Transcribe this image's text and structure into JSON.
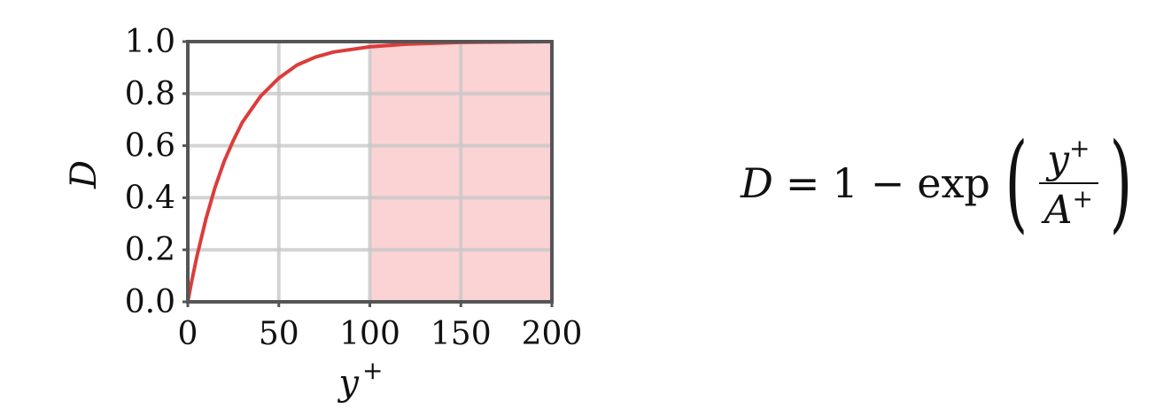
{
  "chart_data": {
    "type": "line",
    "xlabel": "y",
    "xlabel_sup": "+",
    "ylabel": "D",
    "xlim": [
      0,
      200
    ],
    "ylim": [
      0,
      1
    ],
    "x_ticks": [
      "0",
      "50",
      "100",
      "150",
      "200"
    ],
    "y_ticks": [
      "0.0",
      "0.2",
      "0.4",
      "0.6",
      "0.8",
      "1.0"
    ],
    "grid": true,
    "shaded_region": {
      "x_from": 100,
      "x_to": 200,
      "color": "#fbd3d4"
    },
    "series": [
      {
        "color": "#dc3c3c",
        "x": [
          0,
          2,
          5,
          10,
          15,
          20,
          25,
          30,
          40,
          50,
          60,
          70,
          80,
          100,
          120,
          150,
          200
        ],
        "y": [
          0,
          0.074,
          0.175,
          0.32,
          0.44,
          0.54,
          0.62,
          0.69,
          0.79,
          0.86,
          0.91,
          0.94,
          0.96,
          0.98,
          0.99,
          0.997,
          1.0
        ]
      }
    ],
    "colors": {
      "axis": "#555555",
      "grid": "#c8c8c8"
    }
  },
  "formula": {
    "lhs": "D",
    "eq": "=",
    "one": "1",
    "minus": "−",
    "func": "exp",
    "lparen": "(",
    "rparen": ")",
    "num_var": "y",
    "num_sup": "+",
    "den_var": "A",
    "den_sup": "+"
  }
}
